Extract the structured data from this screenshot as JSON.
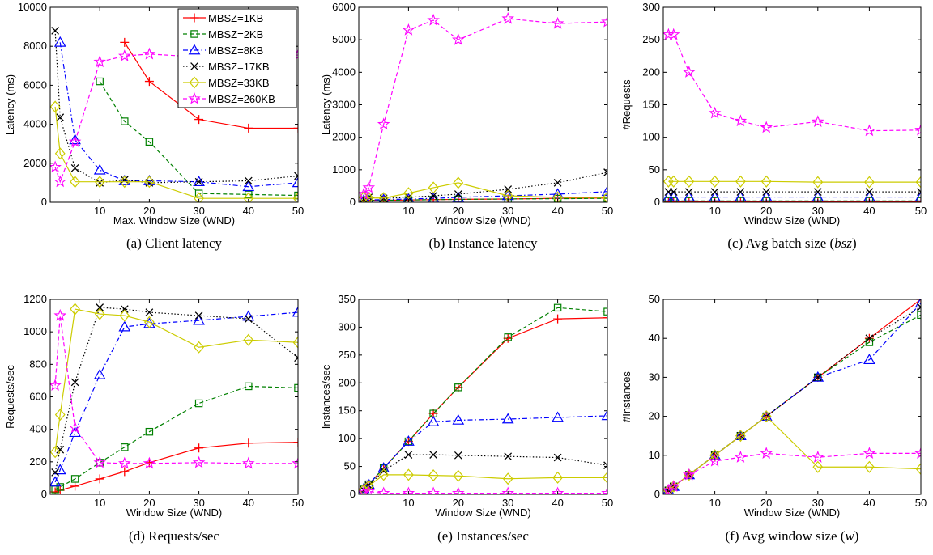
{
  "legend": [
    {
      "name": "MBSZ=1KB",
      "color": "#ff0000",
      "marker": "plus",
      "dash": "solid"
    },
    {
      "name": "MBSZ=2KB",
      "color": "#008000",
      "marker": "square",
      "dash": "dashed"
    },
    {
      "name": "MBSZ=8KB",
      "color": "#0000ff",
      "marker": "triangle",
      "dash": "dashdot"
    },
    {
      "name": "MBSZ=17KB",
      "color": "#000000",
      "marker": "x",
      "dash": "dotted"
    },
    {
      "name": "MBSZ=33KB",
      "color": "#cccc00",
      "marker": "diamond",
      "dash": "solid"
    },
    {
      "name": "MBSZ=260KB",
      "color": "#ff00ff",
      "marker": "star",
      "dash": "dashed"
    }
  ],
  "chart_data": [
    {
      "type": "line",
      "caption": "(a) Client latency",
      "xlabel": "Max. Window Size (WND)",
      "ylabel": "Latency (ms)",
      "xlim": [
        0,
        50
      ],
      "ylim": [
        0,
        10000
      ],
      "xticks": [
        10,
        20,
        30,
        40,
        50
      ],
      "yticks": [
        0,
        2000,
        4000,
        6000,
        8000,
        10000
      ],
      "legend_position": "top-right",
      "series": [
        {
          "name": "MBSZ=1KB",
          "x": [
            15,
            20,
            30,
            40,
            50
          ],
          "y": [
            8200,
            6200,
            4250,
            3800,
            3800
          ]
        },
        {
          "name": "MBSZ=2KB",
          "x": [
            10,
            15,
            20,
            30,
            40,
            50
          ],
          "y": [
            6200,
            4150,
            3100,
            450,
            400,
            350
          ]
        },
        {
          "name": "MBSZ=8KB",
          "x": [
            2,
            5,
            10,
            15,
            20,
            30,
            40,
            50
          ],
          "y": [
            8200,
            3200,
            1650,
            1100,
            1100,
            1050,
            800,
            1000
          ]
        },
        {
          "name": "MBSZ=17KB",
          "x": [
            1,
            2,
            5,
            10,
            15,
            20,
            30,
            40,
            50
          ],
          "y": [
            8800,
            4350,
            1750,
            1000,
            1150,
            1000,
            1050,
            1100,
            1350
          ]
        },
        {
          "name": "MBSZ=33KB",
          "x": [
            1,
            2,
            5,
            10,
            15,
            20,
            30,
            40,
            50
          ],
          "y": [
            4900,
            2500,
            1050,
            1050,
            1050,
            1050,
            200,
            200,
            200
          ]
        },
        {
          "name": "MBSZ=260KB",
          "x": [
            1,
            2,
            5,
            10,
            15,
            20,
            30,
            40,
            50
          ],
          "y": [
            1800,
            1050,
            3100,
            7200,
            7500,
            7600,
            7450,
            7450,
            7550
          ]
        }
      ]
    },
    {
      "type": "line",
      "caption": "(b) Instance latency",
      "xlabel": "Window Size (WND)",
      "ylabel": "Latency (ms)",
      "xlim": [
        0,
        50
      ],
      "ylim": [
        0,
        6000
      ],
      "xticks": [
        10,
        20,
        30,
        40,
        50
      ],
      "yticks": [
        0,
        1000,
        2000,
        3000,
        4000,
        5000,
        6000
      ],
      "series": [
        {
          "name": "MBSZ=1KB",
          "x": [
            1,
            2,
            5,
            10,
            15,
            20,
            30,
            40,
            50
          ],
          "y": [
            50,
            60,
            60,
            70,
            80,
            90,
            100,
            120,
            130
          ]
        },
        {
          "name": "MBSZ=2KB",
          "x": [
            1,
            2,
            5,
            10,
            15,
            20,
            30,
            40,
            50
          ],
          "y": [
            50,
            60,
            60,
            70,
            80,
            90,
            100,
            110,
            120
          ]
        },
        {
          "name": "MBSZ=8KB",
          "x": [
            1,
            2,
            5,
            10,
            15,
            20,
            30,
            40,
            50
          ],
          "y": [
            60,
            70,
            80,
            100,
            120,
            150,
            200,
            250,
            330
          ]
        },
        {
          "name": "MBSZ=17KB",
          "x": [
            1,
            2,
            5,
            10,
            15,
            20,
            30,
            40,
            50
          ],
          "y": [
            100,
            150,
            120,
            150,
            200,
            250,
            400,
            600,
            920
          ]
        },
        {
          "name": "MBSZ=33KB",
          "x": [
            1,
            2,
            5,
            10,
            15,
            20,
            30,
            40,
            50
          ],
          "y": [
            150,
            130,
            130,
            280,
            450,
            600,
            200,
            150,
            150
          ]
        },
        {
          "name": "MBSZ=260KB",
          "x": [
            1,
            2,
            5,
            10,
            15,
            20,
            30,
            40,
            50
          ],
          "y": [
            250,
            450,
            2400,
            5300,
            5600,
            5000,
            5650,
            5500,
            5550
          ]
        }
      ]
    },
    {
      "type": "line",
      "caption": "(c) Avg batch size (bsz)",
      "xlabel": "Window Size (WND)",
      "ylabel": "#Requests",
      "xlim": [
        0,
        50
      ],
      "ylim": [
        0,
        300
      ],
      "xticks": [
        10,
        20,
        30,
        40,
        50
      ],
      "yticks": [
        0,
        50,
        100,
        150,
        200,
        250,
        300
      ],
      "series": [
        {
          "name": "MBSZ=1KB",
          "x": [
            1,
            2,
            5,
            10,
            15,
            20,
            30,
            40,
            50
          ],
          "y": [
            1,
            1,
            1,
            1,
            1,
            1,
            1,
            1,
            1
          ]
        },
        {
          "name": "MBSZ=2KB",
          "x": [
            1,
            2,
            5,
            10,
            15,
            20,
            30,
            40,
            50
          ],
          "y": [
            2,
            2,
            2,
            2,
            2,
            2,
            2,
            2,
            2
          ]
        },
        {
          "name": "MBSZ=8KB",
          "x": [
            1,
            2,
            5,
            10,
            15,
            20,
            30,
            40,
            50
          ],
          "y": [
            8,
            8,
            8,
            8,
            8,
            8,
            8,
            8,
            8
          ]
        },
        {
          "name": "MBSZ=17KB",
          "x": [
            1,
            2,
            5,
            10,
            15,
            20,
            30,
            40,
            50
          ],
          "y": [
            16,
            16,
            16,
            16,
            16,
            16,
            16,
            16,
            16
          ]
        },
        {
          "name": "MBSZ=33KB",
          "x": [
            1,
            2,
            5,
            10,
            15,
            20,
            30,
            40,
            50
          ],
          "y": [
            32,
            32,
            32,
            32,
            32,
            32,
            31,
            31,
            31
          ]
        },
        {
          "name": "MBSZ=260KB",
          "x": [
            1,
            2,
            5,
            10,
            15,
            20,
            30,
            40,
            50
          ],
          "y": [
            258,
            258,
            200,
            137,
            125,
            115,
            124,
            110,
            111
          ]
        }
      ]
    },
    {
      "type": "line",
      "caption": "(d) Requests/sec",
      "xlabel": "Window Size (WND)",
      "ylabel": "Requests/sec",
      "xlim": [
        0,
        50
      ],
      "ylim": [
        0,
        1200
      ],
      "xticks": [
        10,
        20,
        30,
        40,
        50
      ],
      "yticks": [
        0,
        200,
        400,
        600,
        800,
        1000,
        1200
      ],
      "series": [
        {
          "name": "MBSZ=1KB",
          "x": [
            1,
            2,
            5,
            10,
            15,
            20,
            30,
            40,
            50
          ],
          "y": [
            15,
            25,
            50,
            95,
            140,
            195,
            285,
            315,
            320
          ]
        },
        {
          "name": "MBSZ=2KB",
          "x": [
            1,
            2,
            5,
            10,
            15,
            20,
            30,
            40,
            50
          ],
          "y": [
            30,
            45,
            95,
            195,
            290,
            385,
            560,
            665,
            655
          ]
        },
        {
          "name": "MBSZ=8KB",
          "x": [
            1,
            2,
            5,
            10,
            15,
            20,
            30,
            40,
            50
          ],
          "y": [
            75,
            150,
            380,
            735,
            1030,
            1050,
            1070,
            1095,
            1120
          ]
        },
        {
          "name": "MBSZ=17KB",
          "x": [
            1,
            2,
            5,
            10,
            15,
            20,
            30,
            40,
            50
          ],
          "y": [
            135,
            275,
            690,
            1150,
            1140,
            1120,
            1100,
            1080,
            840
          ]
        },
        {
          "name": "MBSZ=33KB",
          "x": [
            1,
            2,
            5,
            10,
            15,
            20,
            30,
            40,
            50
          ],
          "y": [
            260,
            490,
            1140,
            1110,
            1100,
            1060,
            905,
            950,
            935
          ]
        },
        {
          "name": "MBSZ=260KB",
          "x": [
            1,
            2,
            5,
            10,
            15,
            20,
            30,
            40,
            50
          ],
          "y": [
            670,
            1100,
            410,
            195,
            190,
            190,
            195,
            190,
            190
          ]
        }
      ]
    },
    {
      "type": "line",
      "caption": "(e) Instances/sec",
      "xlabel": "Window Size (WND)",
      "ylabel": "Instances/sec",
      "xlim": [
        0,
        50
      ],
      "ylim": [
        0,
        350
      ],
      "xticks": [
        10,
        20,
        30,
        40,
        50
      ],
      "yticks": [
        0,
        50,
        100,
        150,
        200,
        250,
        300,
        350
      ],
      "series": [
        {
          "name": "MBSZ=1KB",
          "x": [
            1,
            2,
            5,
            10,
            15,
            20,
            30,
            40,
            50
          ],
          "y": [
            10,
            18,
            47,
            95,
            145,
            192,
            280,
            315,
            317
          ]
        },
        {
          "name": "MBSZ=2KB",
          "x": [
            1,
            2,
            5,
            10,
            15,
            20,
            30,
            40,
            50
          ],
          "y": [
            10,
            18,
            47,
            95,
            145,
            192,
            282,
            335,
            328
          ]
        },
        {
          "name": "MBSZ=8KB",
          "x": [
            1,
            2,
            5,
            10,
            15,
            20,
            30,
            40,
            50
          ],
          "y": [
            10,
            18,
            47,
            95,
            130,
            133,
            135,
            138,
            141
          ]
        },
        {
          "name": "MBSZ=17KB",
          "x": [
            1,
            2,
            5,
            10,
            15,
            20,
            30,
            40,
            50
          ],
          "y": [
            8,
            16,
            42,
            71,
            71,
            70,
            68,
            66,
            52
          ]
        },
        {
          "name": "MBSZ=33KB",
          "x": [
            1,
            2,
            5,
            10,
            15,
            20,
            30,
            40,
            50
          ],
          "y": [
            8,
            15,
            35,
            35,
            34,
            33,
            28,
            30,
            30
          ]
        },
        {
          "name": "MBSZ=260KB",
          "x": [
            1,
            2,
            5,
            10,
            15,
            20,
            30,
            40,
            50
          ],
          "y": [
            3,
            5,
            2,
            2,
            2,
            2,
            2,
            2,
            2
          ]
        }
      ]
    },
    {
      "type": "line",
      "caption": "(f) Avg window size (w)",
      "xlabel": "Window Size (WND)",
      "ylabel": "#Instances",
      "xlim": [
        0,
        50
      ],
      "ylim": [
        0,
        50
      ],
      "xticks": [
        10,
        20,
        30,
        40,
        50
      ],
      "yticks": [
        0,
        10,
        20,
        30,
        40,
        50
      ],
      "series": [
        {
          "name": "MBSZ=1KB",
          "x": [
            1,
            2,
            5,
            10,
            15,
            20,
            30,
            40,
            50
          ],
          "y": [
            1,
            2,
            5,
            10,
            15,
            20,
            30,
            40,
            50
          ]
        },
        {
          "name": "MBSZ=2KB",
          "x": [
            1,
            2,
            5,
            10,
            15,
            20,
            30,
            40,
            50
          ],
          "y": [
            1,
            2,
            5,
            10,
            15,
            20,
            30,
            39,
            46
          ]
        },
        {
          "name": "MBSZ=8KB",
          "x": [
            1,
            2,
            5,
            10,
            15,
            20,
            30,
            40,
            50
          ],
          "y": [
            1,
            2,
            5,
            10,
            15,
            20,
            30,
            34.5,
            49
          ]
        },
        {
          "name": "MBSZ=17KB",
          "x": [
            1,
            2,
            5,
            10,
            15,
            20,
            30,
            40,
            50
          ],
          "y": [
            1,
            2,
            5,
            10,
            15,
            20,
            30,
            40,
            48
          ]
        },
        {
          "name": "MBSZ=33KB",
          "x": [
            1,
            2,
            5,
            10,
            15,
            20,
            30,
            40,
            50
          ],
          "y": [
            1,
            2,
            5,
            10,
            15,
            20,
            7,
            7,
            6.5
          ]
        },
        {
          "name": "MBSZ=260KB",
          "x": [
            1,
            2,
            5,
            10,
            15,
            20,
            30,
            40,
            50
          ],
          "y": [
            1,
            2,
            5,
            8.5,
            9.5,
            10.5,
            9.5,
            10.5,
            10.5
          ]
        }
      ]
    }
  ]
}
